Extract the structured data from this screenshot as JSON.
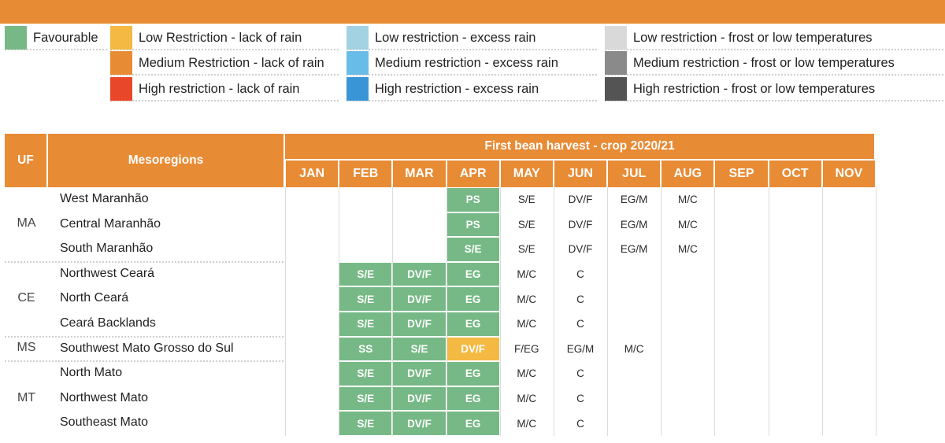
{
  "legend": [
    {
      "label": "Favourable",
      "color": "#77b986"
    },
    {
      "label": "Low Restriction - lack of rain",
      "color": "#f4b942"
    },
    {
      "label": "Medium Restriction - lack of rain",
      "color": "#e88b35"
    },
    {
      "label": "High restriction - lack of rain",
      "color": "#e8472a"
    },
    {
      "label": "Low restriction - excess rain",
      "color": "#a3d2e2"
    },
    {
      "label": "Medium restriction - excess rain",
      "color": "#68bce8"
    },
    {
      "label": "High restriction - excess rain",
      "color": "#3a95d6"
    },
    {
      "label": "Low restriction - frost or low temperatures",
      "color": "#d9d9d9"
    },
    {
      "label": "Medium restriction - frost or low temperatures",
      "color": "#8a8a8a"
    },
    {
      "label": "High restriction - frost or low temperatures",
      "color": "#545454"
    }
  ],
  "table": {
    "uf_header": "UF",
    "mesoregions_header": "Mesoregions",
    "title": "First bean harvest - crop 2020/21",
    "months": [
      "JAN",
      "FEB",
      "MAR",
      "APR",
      "MAY",
      "JUN",
      "JUL",
      "AUG",
      "SEP",
      "OCT",
      "NOV"
    ],
    "groups": [
      {
        "uf": "MA",
        "rows": [
          {
            "region": "West Maranhão",
            "stages": [
              "",
              "",
              "",
              "PS",
              "S/E",
              "DV/F",
              "EG/M",
              "M/C",
              "",
              "",
              ""
            ],
            "status": [
              "",
              "",
              "",
              "favourable",
              "",
              "",
              "",
              "",
              "",
              "",
              ""
            ]
          },
          {
            "region": "Central Maranhão",
            "stages": [
              "",
              "",
              "",
              "PS",
              "S/E",
              "DV/F",
              "EG/M",
              "M/C",
              "",
              "",
              ""
            ],
            "status": [
              "",
              "",
              "",
              "favourable",
              "",
              "",
              "",
              "",
              "",
              "",
              ""
            ]
          },
          {
            "region": "South Maranhão",
            "stages": [
              "",
              "",
              "",
              "S/E",
              "S/E",
              "DV/F",
              "EG/M",
              "M/C",
              "",
              "",
              ""
            ],
            "status": [
              "",
              "",
              "",
              "favourable",
              "",
              "",
              "",
              "",
              "",
              "",
              ""
            ]
          }
        ]
      },
      {
        "uf": "CE",
        "rows": [
          {
            "region": "Northwest Ceará",
            "stages": [
              "",
              "S/E",
              "DV/F",
              "EG",
              "M/C",
              "C",
              "",
              "",
              "",
              "",
              ""
            ],
            "status": [
              "",
              "favourable",
              "favourable",
              "favourable",
              "",
              "",
              "",
              "",
              "",
              "",
              ""
            ]
          },
          {
            "region": "North Ceará",
            "stages": [
              "",
              "S/E",
              "DV/F",
              "EG",
              "M/C",
              "C",
              "",
              "",
              "",
              "",
              ""
            ],
            "status": [
              "",
              "favourable",
              "favourable",
              "favourable",
              "",
              "",
              "",
              "",
              "",
              "",
              ""
            ]
          },
          {
            "region": "Ceará Backlands",
            "stages": [
              "",
              "S/E",
              "DV/F",
              "EG",
              "M/C",
              "C",
              "",
              "",
              "",
              "",
              ""
            ],
            "status": [
              "",
              "favourable",
              "favourable",
              "favourable",
              "",
              "",
              "",
              "",
              "",
              "",
              ""
            ]
          }
        ]
      },
      {
        "uf": "MS",
        "rows": [
          {
            "region": "Southwest Mato Grosso do Sul",
            "stages": [
              "",
              "SS",
              "S/E",
              "DV/F",
              "F/EG",
              "EG/M",
              "M/C",
              "",
              "",
              "",
              ""
            ],
            "status": [
              "",
              "favourable",
              "favourable",
              "low-lack-of-rain",
              "",
              "",
              "",
              "",
              "",
              "",
              ""
            ]
          }
        ]
      },
      {
        "uf": "MT",
        "rows": [
          {
            "region": "North Mato",
            "stages": [
              "",
              "S/E",
              "DV/F",
              "EG",
              "M/C",
              "C",
              "",
              "",
              "",
              "",
              ""
            ],
            "status": [
              "",
              "favourable",
              "favourable",
              "favourable",
              "",
              "",
              "",
              "",
              "",
              "",
              ""
            ]
          },
          {
            "region": "Northwest Mato",
            "stages": [
              "",
              "S/E",
              "DV/F",
              "EG",
              "M/C",
              "C",
              "",
              "",
              "",
              "",
              ""
            ],
            "status": [
              "",
              "favourable",
              "favourable",
              "favourable",
              "",
              "",
              "",
              "",
              "",
              "",
              ""
            ]
          },
          {
            "region": "Southeast Mato",
            "stages": [
              "",
              "S/E",
              "DV/F",
              "EG",
              "M/C",
              "C",
              "",
              "",
              "",
              "",
              ""
            ],
            "status": [
              "",
              "favourable",
              "favourable",
              "favourable",
              "",
              "",
              "",
              "",
              "",
              "",
              ""
            ]
          }
        ]
      }
    ]
  }
}
